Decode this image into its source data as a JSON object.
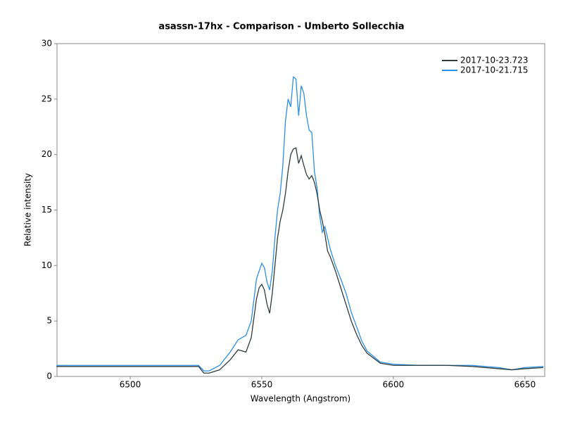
{
  "chart_data": {
    "type": "line",
    "title": "asassn-17hx  - Comparison - Umberto Sollecchia",
    "x_label": "Wavelength (Angstrom)",
    "y_label": "Relative intensity",
    "x": [
      6472,
      6480,
      6490,
      6500,
      6510,
      6520,
      6526,
      6528,
      6530,
      6534,
      6538,
      6541,
      6544,
      6546,
      6548,
      6549,
      6550,
      6551,
      6552,
      6553,
      6554,
      6555,
      6556,
      6557,
      6558,
      6559,
      6560,
      6561,
      6562,
      6563,
      6564,
      6565,
      6566,
      6567,
      6568,
      6569,
      6570,
      6571,
      6572,
      6573,
      6574,
      6575,
      6576,
      6578,
      6580,
      6582,
      6584,
      6586,
      6588,
      6590,
      6595,
      6600,
      6610,
      6620,
      6630,
      6640,
      6645,
      6650,
      6657
    ],
    "series": [
      {
        "name": "2017-10-23.723",
        "color": "#2f3b3b",
        "values": [
          0.9,
          0.9,
          0.9,
          0.9,
          0.9,
          0.9,
          0.9,
          0.3,
          0.3,
          0.6,
          1.5,
          2.4,
          2.2,
          3.5,
          7.0,
          8.0,
          8.3,
          7.8,
          6.5,
          5.7,
          7.5,
          10,
          12.5,
          14.0,
          15,
          16.5,
          18.5,
          20.0,
          20.5,
          20.6,
          19.2,
          19.9,
          19.0,
          18.2,
          17.8,
          18.1,
          17.5,
          16.5,
          15.0,
          14.0,
          12.8,
          11.3,
          10.8,
          9.5,
          8.0,
          6.5,
          5.0,
          3.8,
          2.8,
          2.1,
          1.2,
          1.0,
          1.0,
          1.0,
          0.9,
          0.7,
          0.6,
          0.7,
          0.8
        ]
      },
      {
        "name": "2017-10-21.715",
        "color": "#2b8fe6",
        "values": [
          1.0,
          1.0,
          1.0,
          1.0,
          1.0,
          1.0,
          1.0,
          0.5,
          0.5,
          1.0,
          2.2,
          3.3,
          3.7,
          5.0,
          8.8,
          9.5,
          10.2,
          9.8,
          8.5,
          7.8,
          9.5,
          12.5,
          15.0,
          16.5,
          19.0,
          23.0,
          25.0,
          24.3,
          27.0,
          26.8,
          23.5,
          26.2,
          25.5,
          23.5,
          22.2,
          22.0,
          18.5,
          17.0,
          14.5,
          13.0,
          13.5,
          12.5,
          11.5,
          10.0,
          8.8,
          7.5,
          5.8,
          4.5,
          3.2,
          2.3,
          1.3,
          1.1,
          1.0,
          1.0,
          1.0,
          0.8,
          0.6,
          0.8,
          0.9
        ]
      }
    ],
    "xlim": [
      6472.2,
      6657.5
    ],
    "xticks": [
      6500,
      6550,
      6600,
      6650
    ],
    "ylim": [
      0,
      30
    ],
    "yticks": [
      0,
      5,
      10,
      15,
      20,
      25,
      30
    ],
    "legend": "upper right"
  }
}
